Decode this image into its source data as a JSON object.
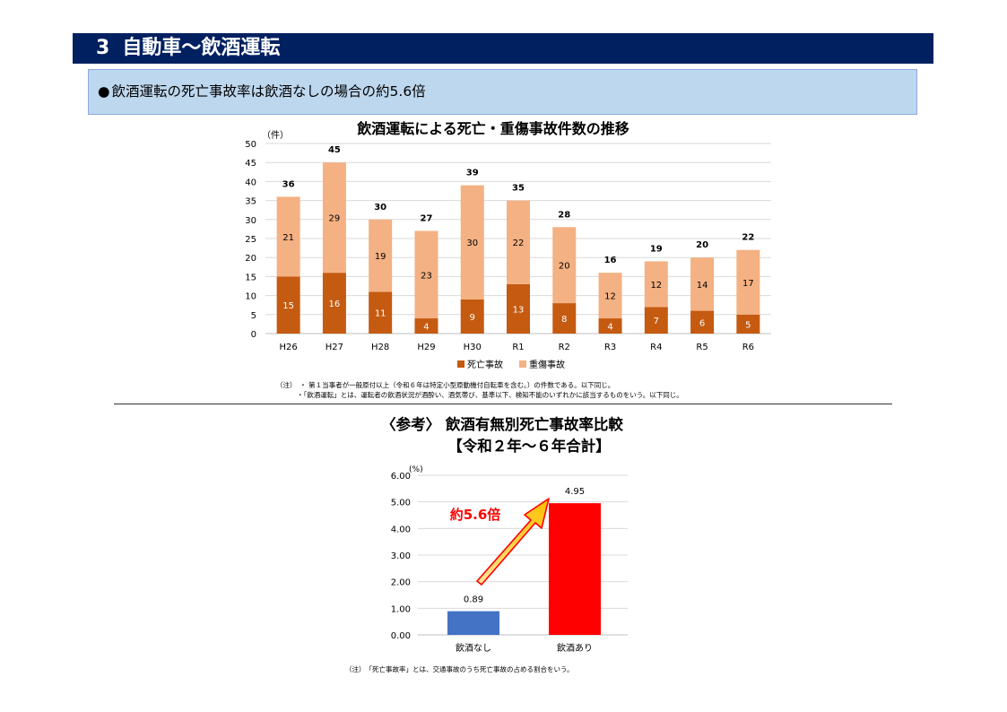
{
  "header": {
    "number": "3",
    "title": "自動車～飲酒運転"
  },
  "summary": {
    "bullet": "●",
    "text": "飲酒運転の死亡事故率は飲酒なしの場合の約5.6倍"
  },
  "colors": {
    "header_bg": "#002060",
    "summary_bg": "#bdd7ee",
    "fatal": "#c55a11",
    "serious": "#f4b183",
    "no_alcohol": "#4472c4",
    "alcohol": "#ff0000",
    "arrow": "#ffc000"
  },
  "chart_data": [
    {
      "type": "bar",
      "stacked": true,
      "title": "飲酒運転による死亡・重傷事故件数の推移",
      "ylabel": "（件）",
      "ylim": [
        0,
        50
      ],
      "yticks": [
        0,
        5,
        10,
        15,
        20,
        25,
        30,
        35,
        40,
        45,
        50
      ],
      "categories": [
        "H26",
        "H27",
        "H28",
        "H29",
        "H30",
        "R1",
        "R2",
        "R3",
        "R4",
        "R5",
        "R6"
      ],
      "series": [
        {
          "name": "死亡事故",
          "values": [
            15,
            16,
            11,
            4,
            9,
            13,
            8,
            4,
            7,
            6,
            5
          ]
        },
        {
          "name": "重傷事故",
          "values": [
            21,
            29,
            19,
            23,
            30,
            22,
            20,
            12,
            12,
            14,
            17
          ]
        }
      ],
      "totals": [
        36,
        45,
        30,
        27,
        39,
        35,
        28,
        16,
        19,
        20,
        22
      ],
      "legend": "bottom",
      "grid": true
    },
    {
      "type": "bar",
      "title": "〈参考〉 飲酒有無別死亡事故率比較",
      "subtitle": "【令和２年～６年合計】",
      "ylabel": "(%)",
      "ylim": [
        0,
        6
      ],
      "yticks": [
        "0.00",
        "1.00",
        "2.00",
        "3.00",
        "4.00",
        "5.00",
        "6.00"
      ],
      "categories": [
        "飲酒なし",
        "飲酒あり"
      ],
      "values": [
        0.89,
        4.95
      ],
      "value_labels": [
        "0.89",
        "4.95"
      ],
      "annotation": "約5.6倍",
      "grid": true
    }
  ],
  "notes": {
    "chart1_line1": "（注）　・ 第１当事者が一般原付以上（令和６年は特定小型原動機付自転車を含む。）の件数である。以下同じ。",
    "chart1_line2": "・「飲酒運転」とは、運転者の飲酒状況が酒酔い、酒気帯び、基準以下、検知不能のいずれかに該当するものをいう。以下同じ。",
    "chart2_line1": "（注）　「死亡事故率」とは、交通事故のうち死亡事故の占める割合をいう。"
  }
}
